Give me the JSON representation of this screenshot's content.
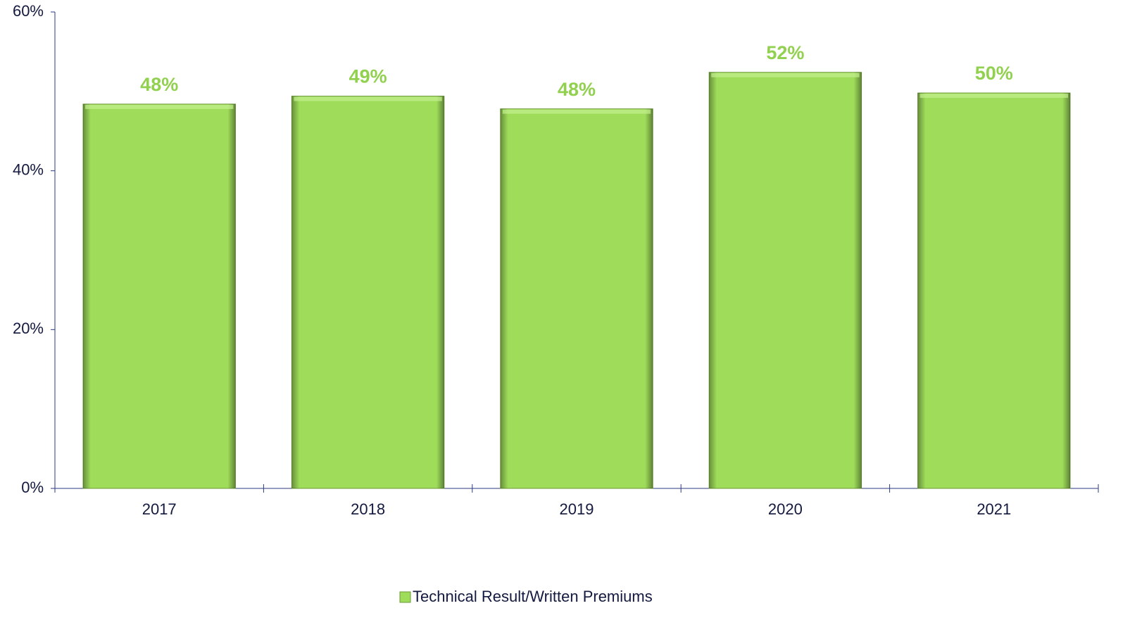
{
  "chart_data": {
    "type": "bar",
    "categories": [
      "2017",
      "2018",
      "2019",
      "2020",
      "2021"
    ],
    "series": [
      {
        "name": "Technical Result/Written Premiums",
        "color": "#9edc5a",
        "values": [
          48.4,
          49.4,
          47.8,
          52.4,
          49.8
        ],
        "value_labels": [
          "48%",
          "49%",
          "48%",
          "52%",
          "50%"
        ]
      }
    ],
    "ylim": [
      0,
      60
    ],
    "yticks": [
      {
        "value": 0,
        "label": "0%"
      },
      {
        "value": 20,
        "label": "20%"
      },
      {
        "value": 40,
        "label": "40%"
      },
      {
        "value": 60,
        "label": "60%"
      }
    ],
    "grid": false,
    "legend": "bottom"
  }
}
